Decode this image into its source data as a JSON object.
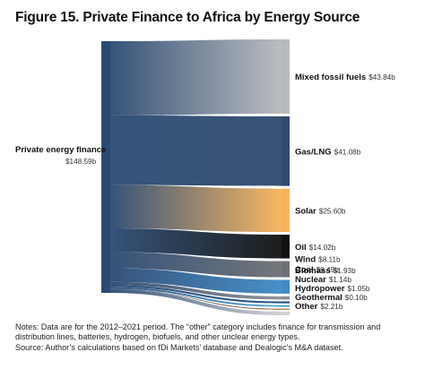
{
  "title": "Figure 15. Private Finance to Africa by Energy Source",
  "notes": [
    "Notes: Data are for the 2012–2021 period. The “other” category includes finance for transmission and distribution lines, batteries, hydrogen, biofuels, and other unclear energy types.",
    "Source: Author’s calculations based on fDi Markets’ database and Dealogic’s M&A dataset."
  ],
  "chart_data": {
    "type": "sankey",
    "unit": "$b",
    "source": {
      "name": "Private energy finance",
      "value": 148.59,
      "label": "$148.59b",
      "color": "#2b4a73"
    },
    "targets": [
      {
        "name": "Mixed fossil fuels",
        "value": 43.84,
        "label": "$43.84b",
        "color": "#b8b9bb"
      },
      {
        "name": "Gas/LNG",
        "value": 41.08,
        "label": "$41.08b",
        "color": "#2e4a6e"
      },
      {
        "name": "Solar",
        "value": 25.6,
        "label": "$25.60b",
        "color": "#f7b35a"
      },
      {
        "name": "Oil",
        "value": 14.02,
        "label": "$14.02b",
        "color": "#111111"
      },
      {
        "name": "Coal",
        "value": 9.49,
        "label": "$9.49b",
        "color": "#6c6f73"
      },
      {
        "name": "Wind",
        "value": 8.11,
        "label": "$8.11b",
        "color": "#3d8ac6"
      },
      {
        "name": "Biomass",
        "value": 1.93,
        "label": "$1.93b",
        "color": "#8d8f92"
      },
      {
        "name": "Nuclear",
        "value": 1.14,
        "label": "$1.14b",
        "color": "#1e4a80"
      },
      {
        "name": "Hydropower",
        "value": 1.05,
        "label": "$1.05b",
        "color": "#4aa1d8"
      },
      {
        "name": "Geothermal",
        "value": 0.1,
        "label": "$0.10b",
        "color": "#9a6a3a"
      },
      {
        "name": "Other",
        "value": 2.21,
        "label": "$2.21b",
        "color": "#d0d1d4"
      }
    ]
  }
}
